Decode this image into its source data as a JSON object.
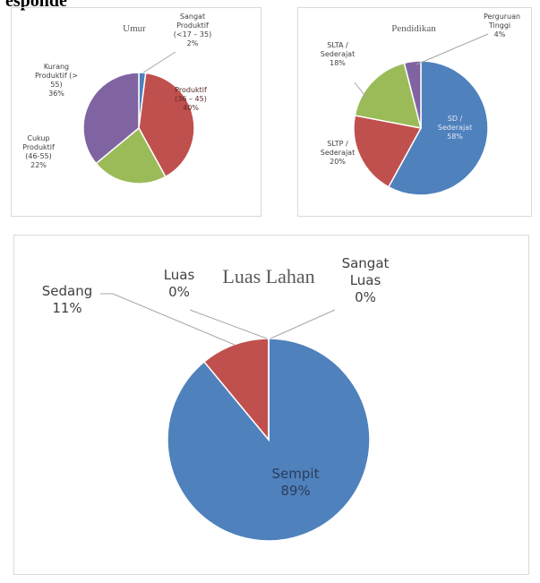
{
  "heading": "esponde",
  "chart_data": [
    {
      "type": "pie",
      "title": "Umur",
      "categories": [
        "Sangat Produktif (<17 – 35)",
        "Produktif (36 – 45)",
        "Cukup Produktif (46-55)",
        "Kurang Produktif (> 55)"
      ],
      "values": [
        2,
        40,
        22,
        36
      ],
      "value_labels": [
        "2%",
        "40%",
        "22%",
        "36%"
      ],
      "colors": [
        "#4f81bd",
        "#c0504d",
        "#9bbb59",
        "#8064a2"
      ]
    },
    {
      "type": "pie",
      "title": "Pendidikan",
      "categories": [
        "SD / Sederajat",
        "SLTP / Sederajat",
        "SLTA / Sederajat",
        "Perguruan Tinggi"
      ],
      "values": [
        58,
        20,
        18,
        4
      ],
      "value_labels": [
        "58%",
        "20%",
        "18%",
        "4%"
      ],
      "colors": [
        "#4f81bd",
        "#c0504d",
        "#9bbb59",
        "#8064a2"
      ]
    },
    {
      "type": "pie",
      "title": "Luas Lahan",
      "categories": [
        "Sempit",
        "Sedang",
        "Luas",
        "Sangat Luas"
      ],
      "values": [
        89,
        11,
        0,
        0
      ],
      "value_labels": [
        "89%",
        "11%",
        "0%",
        "0%"
      ],
      "colors": [
        "#4f81bd",
        "#c0504d",
        "#9bbb59",
        "#8064a2"
      ]
    }
  ]
}
